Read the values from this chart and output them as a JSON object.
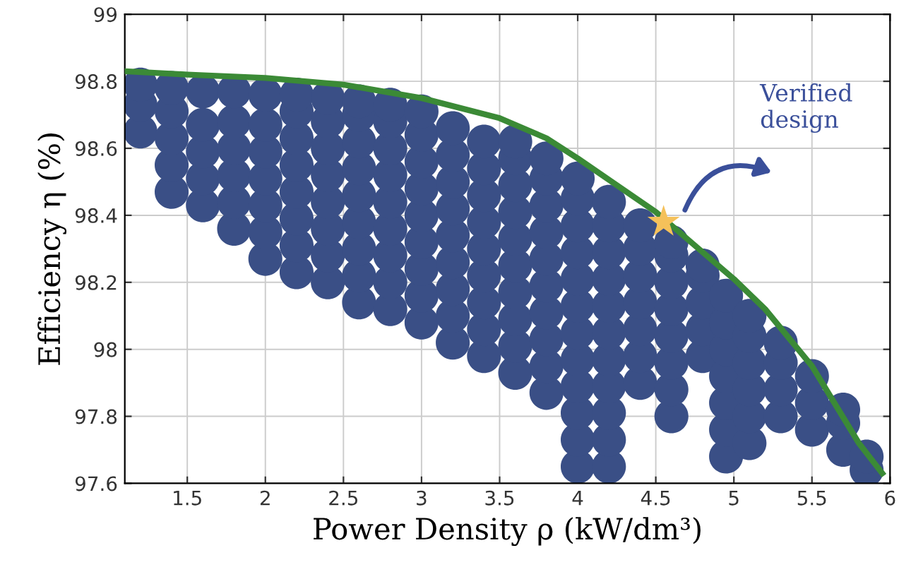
{
  "chart_data": {
    "type": "scatter",
    "xlabel": "Power Density ρ (kW/dm³)",
    "ylabel": "Efficiency η (%)",
    "xlim": [
      1.1,
      6
    ],
    "xticks": [
      1.5,
      2,
      2.5,
      3,
      3.5,
      4,
      4.5,
      5,
      5.5,
      6
    ],
    "ylim": [
      97.6,
      99
    ],
    "yticks": [
      97.6,
      97.8,
      98,
      98.2,
      98.4,
      98.6,
      98.8,
      99
    ],
    "grid": true,
    "annotations": [
      "Verified\ndesign"
    ],
    "series": [
      {
        "color": "#3a4f86",
        "marker": "circle",
        "x": [
          1.2,
          1.2,
          1.2,
          1.4,
          1.4,
          1.4,
          1.4,
          1.4,
          1.6,
          1.6,
          1.6,
          1.6,
          1.6,
          1.8,
          1.8,
          1.8,
          1.8,
          1.8,
          1.8,
          2.0,
          2.0,
          2.0,
          2.0,
          2.0,
          2.0,
          2.0,
          2.2,
          2.2,
          2.2,
          2.2,
          2.2,
          2.2,
          2.2,
          2.2,
          2.4,
          2.4,
          2.4,
          2.4,
          2.4,
          2.4,
          2.4,
          2.4,
          2.6,
          2.6,
          2.6,
          2.6,
          2.6,
          2.6,
          2.6,
          2.6,
          2.6,
          2.8,
          2.8,
          2.8,
          2.8,
          2.8,
          2.8,
          2.8,
          2.8,
          2.8,
          3.0,
          3.0,
          3.0,
          3.0,
          3.0,
          3.0,
          3.0,
          3.0,
          3.0,
          3.2,
          3.2,
          3.2,
          3.2,
          3.2,
          3.2,
          3.2,
          3.2,
          3.2,
          3.4,
          3.4,
          3.4,
          3.4,
          3.4,
          3.4,
          3.4,
          3.4,
          3.4,
          3.6,
          3.6,
          3.6,
          3.6,
          3.6,
          3.6,
          3.6,
          3.6,
          3.6,
          3.6,
          3.8,
          3.8,
          3.8,
          3.8,
          3.8,
          3.8,
          3.8,
          3.8,
          3.8,
          3.8,
          4.0,
          4.0,
          4.0,
          4.0,
          4.0,
          4.0,
          4.0,
          4.0,
          4.0,
          4.0,
          4.0,
          4.0,
          4.2,
          4.2,
          4.2,
          4.2,
          4.2,
          4.2,
          4.2,
          4.2,
          4.2,
          4.2,
          4.2,
          4.4,
          4.4,
          4.4,
          4.4,
          4.4,
          4.4,
          4.4,
          4.6,
          4.6,
          4.6,
          4.6,
          4.6,
          4.6,
          4.6,
          4.6,
          4.8,
          4.8,
          4.8,
          4.8,
          4.8,
          4.95,
          4.95,
          4.95,
          4.95,
          4.95,
          4.95,
          4.95,
          5.1,
          5.1,
          5.1,
          5.1,
          5.1,
          5.1,
          5.3,
          5.3,
          5.3,
          5.3,
          5.5,
          5.5,
          5.5,
          5.7,
          5.7,
          5.7,
          5.85,
          5.85
        ],
        "values": [
          98.65,
          98.73,
          98.79,
          98.47,
          98.55,
          98.63,
          98.71,
          98.78,
          98.43,
          98.51,
          98.59,
          98.67,
          98.77,
          98.36,
          98.44,
          98.52,
          98.6,
          98.68,
          98.77,
          98.27,
          98.35,
          98.43,
          98.51,
          98.59,
          98.67,
          98.76,
          98.23,
          98.31,
          98.39,
          98.47,
          98.55,
          98.63,
          98.71,
          98.76,
          98.2,
          98.28,
          98.36,
          98.44,
          98.52,
          98.6,
          98.68,
          98.75,
          98.14,
          98.22,
          98.3,
          98.38,
          98.46,
          98.54,
          98.62,
          98.7,
          98.74,
          98.12,
          98.2,
          98.28,
          98.36,
          98.44,
          98.52,
          98.6,
          98.68,
          98.73,
          98.08,
          98.16,
          98.24,
          98.32,
          98.4,
          98.48,
          98.56,
          98.64,
          98.71,
          98.02,
          98.1,
          98.18,
          98.26,
          98.34,
          98.42,
          98.5,
          98.58,
          98.66,
          97.98,
          98.06,
          98.14,
          98.22,
          98.3,
          98.38,
          98.46,
          98.54,
          98.62,
          97.93,
          98.01,
          98.09,
          98.17,
          98.25,
          98.33,
          98.41,
          98.49,
          98.57,
          98.62,
          97.87,
          97.95,
          98.03,
          98.11,
          98.19,
          98.27,
          98.35,
          98.43,
          98.51,
          98.57,
          97.65,
          97.73,
          97.81,
          97.89,
          97.97,
          98.05,
          98.13,
          98.21,
          98.29,
          98.37,
          98.45,
          98.51,
          97.65,
          97.73,
          97.81,
          97.89,
          97.97,
          98.05,
          98.13,
          98.21,
          98.29,
          98.37,
          98.44,
          97.9,
          97.98,
          98.06,
          98.14,
          98.22,
          98.3,
          98.37,
          97.8,
          97.88,
          97.96,
          98.04,
          98.12,
          98.2,
          98.28,
          98.32,
          97.98,
          98.06,
          98.14,
          98.22,
          98.25,
          97.68,
          97.76,
          97.84,
          97.92,
          98.0,
          98.08,
          98.16,
          97.72,
          97.8,
          97.88,
          97.96,
          98.04,
          98.1,
          97.8,
          97.88,
          97.96,
          98.02,
          97.76,
          97.84,
          97.92,
          97.7,
          97.78,
          97.82,
          97.64,
          97.68
        ]
      },
      {
        "type": "line",
        "color": "#3b8a36",
        "marker": "none",
        "line_style": "solid",
        "x": [
          1.1,
          1.5,
          2,
          2.5,
          3,
          3.5,
          3.8,
          4,
          4.5,
          5,
          5.2,
          5.5,
          5.8,
          5.95
        ],
        "values": [
          98.83,
          98.82,
          98.81,
          98.79,
          98.75,
          98.69,
          98.63,
          98.57,
          98.41,
          98.21,
          98.12,
          97.95,
          97.72,
          97.63
        ]
      },
      {
        "type": "scatter",
        "color": "#f5c15a",
        "marker": "star",
        "x": [
          4.55
        ],
        "values": [
          98.38
        ]
      }
    ]
  }
}
